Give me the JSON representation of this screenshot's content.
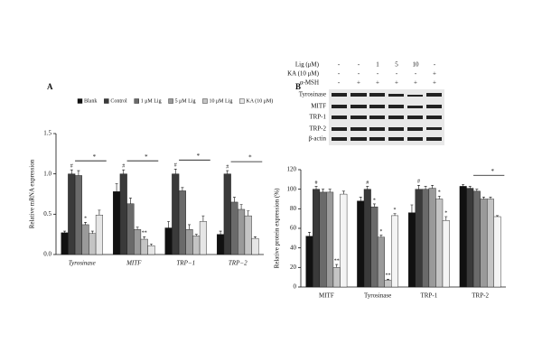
{
  "panel_labels": [
    "A",
    "B"
  ],
  "blot": {
    "conditions": [
      {
        "label": "Lig (μM)",
        "values": [
          "-",
          "-",
          "1",
          "5",
          "10",
          "-"
        ]
      },
      {
        "label": "KA (10 μM)",
        "values": [
          "-",
          "-",
          "-",
          "-",
          "-",
          "+"
        ]
      },
      {
        "label": "α-MSH",
        "values": [
          "-",
          "+",
          "+",
          "+",
          "+",
          "+"
        ]
      }
    ],
    "proteins": [
      "Tyrosinase",
      "MITF",
      "TRP-1",
      "TRP-2",
      "β-actin"
    ]
  },
  "chart_data": [
    {
      "type": "bar",
      "y_label": "Relative mRNA expression",
      "categories": [
        "Tyrosinase",
        "MITF",
        "TRP−1",
        "TRP−2"
      ],
      "ylim": [
        0,
        1.5
      ],
      "yticks": [
        {
          "value": 0,
          "label": "0.0"
        },
        {
          "value": 0.5,
          "label": "0.5"
        },
        {
          "value": 1,
          "label": "1.0"
        },
        {
          "value": 1.5,
          "label": "1.5"
        }
      ],
      "brackets": [
        "*",
        "*",
        "*",
        "*"
      ],
      "series": [
        {
          "name": "Blank",
          "color": "#111111",
          "values": [
            0.27,
            0.78,
            0.33,
            0.25
          ],
          "errors": [
            0.02,
            0.1,
            0.08,
            0.04
          ],
          "markers": [
            null,
            null,
            null,
            null
          ]
        },
        {
          "name": "Control",
          "color": "#3a3a3a",
          "values": [
            1.0,
            1.0,
            1.0,
            1.0
          ],
          "errors": [
            0.05,
            0.05,
            0.06,
            0.04
          ],
          "markers": [
            "#",
            "#",
            "#",
            "#"
          ]
        },
        {
          "name": "1 μM Lig",
          "color": "#6a6a6a",
          "values": [
            0.98,
            0.63,
            0.79,
            0.65
          ],
          "errors": [
            0.06,
            0.07,
            0.04,
            0.06
          ],
          "markers": [
            null,
            null,
            null,
            null
          ]
        },
        {
          "name": "5 μM Lig",
          "color": "#9a9a9a",
          "values": [
            0.37,
            0.31,
            0.31,
            0.56
          ],
          "errors": [
            0.03,
            0.03,
            0.06,
            0.06
          ],
          "markers": [
            "*",
            null,
            null,
            null
          ]
        },
        {
          "name": "10 μM Lig",
          "color": "#c4c4c4",
          "values": [
            0.26,
            0.19,
            0.23,
            0.48
          ],
          "errors": [
            0.03,
            0.03,
            0.02,
            0.06
          ],
          "markers": [
            null,
            "**",
            null,
            null
          ]
        },
        {
          "name": "KA (10 μM)",
          "color": "#e6e6e6",
          "values": [
            0.49,
            0.11,
            0.41,
            0.2
          ],
          "errors": [
            0.06,
            0.02,
            0.07,
            0.02
          ],
          "markers": [
            null,
            null,
            null,
            null
          ]
        }
      ]
    },
    {
      "type": "bar",
      "y_label": "Relative protein expression (%)",
      "categories": [
        "MITF",
        "Tyrosinase",
        "TRP-1",
        "TRP-2"
      ],
      "ylim": [
        0,
        120
      ],
      "yticks": [
        0,
        20,
        40,
        60,
        80,
        100,
        120
      ],
      "brackets": [
        null,
        null,
        null,
        "*"
      ],
      "series": [
        {
          "color": "#111111",
          "values": [
            52,
            88,
            76,
            103
          ],
          "errors": [
            4,
            4,
            8,
            2
          ],
          "markers": [
            null,
            null,
            null,
            null
          ]
        },
        {
          "color": "#3a3a3a",
          "values": [
            100,
            100,
            100,
            101
          ],
          "errors": [
            3,
            3,
            4,
            2
          ],
          "markers": [
            "#",
            "#",
            "#",
            null
          ]
        },
        {
          "color": "#6a6a6a",
          "values": [
            97,
            82,
            100,
            98
          ],
          "errors": [
            3,
            3,
            3,
            2
          ],
          "markers": [
            null,
            "*",
            null,
            null
          ]
        },
        {
          "color": "#9a9a9a",
          "values": [
            97,
            51,
            101,
            90
          ],
          "errors": [
            3,
            2,
            3,
            2
          ],
          "markers": [
            null,
            "*",
            null,
            null
          ]
        },
        {
          "color": "#c4c4c4",
          "values": [
            20,
            7,
            90,
            90
          ],
          "errors": [
            3,
            1,
            3,
            2
          ],
          "markers": [
            "**",
            "**",
            "*",
            null
          ]
        },
        {
          "color": "#f4f4f4",
          "values": [
            95,
            73,
            68,
            72
          ],
          "errors": [
            3,
            2,
            4,
            1
          ],
          "markers": [
            null,
            "*",
            "*",
            null
          ]
        }
      ]
    }
  ]
}
